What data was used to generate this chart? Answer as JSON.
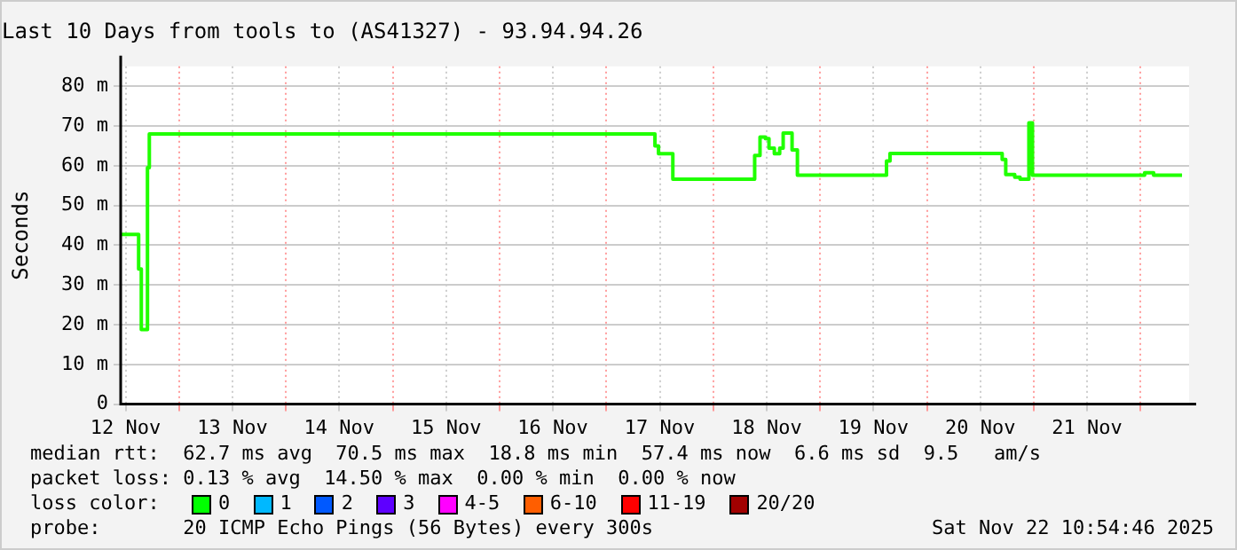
{
  "chart_data": {
    "type": "step",
    "title": "Last 10 Days from tools to (AS41327) - 93.94.94.26",
    "ylabel": "Seconds",
    "x": [
      "2025-11-12T10:54",
      "2025-11-12T14:56",
      "2025-11-12T15:32",
      "2025-11-12T16:55",
      "2025-11-12T17:20",
      "2025-11-17T10:55",
      "2025-11-17T11:43",
      "2025-11-17T14:56",
      "2025-11-18T09:19",
      "2025-11-18T10:31",
      "2025-11-18T11:43",
      "2025-11-18T12:32",
      "2025-11-18T13:44",
      "2025-11-18T14:56",
      "2025-11-18T15:43",
      "2025-11-18T17:43",
      "2025-11-18T18:55",
      "2025-11-19T14:56",
      "2025-11-19T15:43",
      "2025-11-20T16:55",
      "2025-11-20T17:43",
      "2025-11-20T19:44",
      "2025-11-20T20:56",
      "2025-11-20T22:55",
      "2025-11-20T23:43",
      "2025-11-22T00:55",
      "2025-11-22T02:56",
      "2025-11-22T09:19"
    ],
    "series": [
      {
        "color": "#20ff00",
        "values": [
          42.7,
          34,
          18.8,
          59.5,
          68,
          65,
          63,
          56.6,
          62.6,
          67.2,
          66.8,
          64.4,
          63,
          64.4,
          68.2,
          64,
          57.6,
          61.2,
          63.1,
          61.6,
          57.8,
          57.1,
          56.6,
          70.8,
          57.6,
          58.2,
          57.6,
          57.6
        ]
      }
    ],
    "xlim": [
      "2025-11-12T10:54",
      "2025-11-22T10:54"
    ],
    "xticks": [
      {
        "value": "2025-11-12T12:00",
        "label": "12 Nov"
      },
      {
        "value": "2025-11-13",
        "label": null
      },
      {
        "value": "2025-11-13T12:00",
        "label": "13 Nov"
      },
      {
        "value": "2025-11-14",
        "label": null
      },
      {
        "value": "2025-11-14T12:00",
        "label": "14 Nov"
      },
      {
        "value": "2025-11-15",
        "label": null
      },
      {
        "value": "2025-11-15T12:00",
        "label": "15 Nov"
      },
      {
        "value": "2025-11-16",
        "label": null
      },
      {
        "value": "2025-11-16T12:00",
        "label": "16 Nov"
      },
      {
        "value": "2025-11-17",
        "label": null
      },
      {
        "value": "2025-11-17T12:00",
        "label": "17 Nov"
      },
      {
        "value": "2025-11-18",
        "label": null
      },
      {
        "value": "2025-11-18T12:00",
        "label": "18 Nov"
      },
      {
        "value": "2025-11-19",
        "label": null
      },
      {
        "value": "2025-11-19T12:00",
        "label": "19 Nov"
      },
      {
        "value": "2025-11-20",
        "label": null
      },
      {
        "value": "2025-11-20T12:00",
        "label": "20 Nov"
      },
      {
        "value": "2025-11-21",
        "label": null
      },
      {
        "value": "2025-11-21T12:00",
        "label": "21 Nov"
      },
      {
        "value": "2025-11-22",
        "label": null
      }
    ],
    "ylim": [
      0,
      85
    ],
    "yticks": [
      0,
      {
        "value": 10,
        "label": "10 m"
      },
      {
        "value": 20,
        "label": "20 m"
      },
      {
        "value": 30,
        "label": "30 m"
      },
      {
        "value": 40,
        "label": "40 m"
      },
      {
        "value": 50,
        "label": "50 m"
      },
      {
        "value": 60,
        "label": "60 m"
      },
      {
        "value": 70,
        "label": "70 m"
      },
      {
        "value": 80,
        "label": "80 m"
      }
    ],
    "grid": true,
    "legend": false,
    "marker": "none",
    "line_style": "solid",
    "annotations": [
      "median rtt:  62.7 ms avg  70.5 ms max  18.8 ms min  57.4 ms now  6.6 ms sd  9.5   am/s",
      "packet loss: 0.13 % avg  14.50 % max  0.00 % min  0.00 % now",
      "loss color:",
      "0",
      "1",
      "2",
      "3",
      "4-5",
      "6-10",
      "11-19",
      "20/20",
      "probe:       20 ICMP Echo Pings (56 Bytes) every 300s",
      "Sat Nov 22 10:54:46 2025"
    ]
  }
}
